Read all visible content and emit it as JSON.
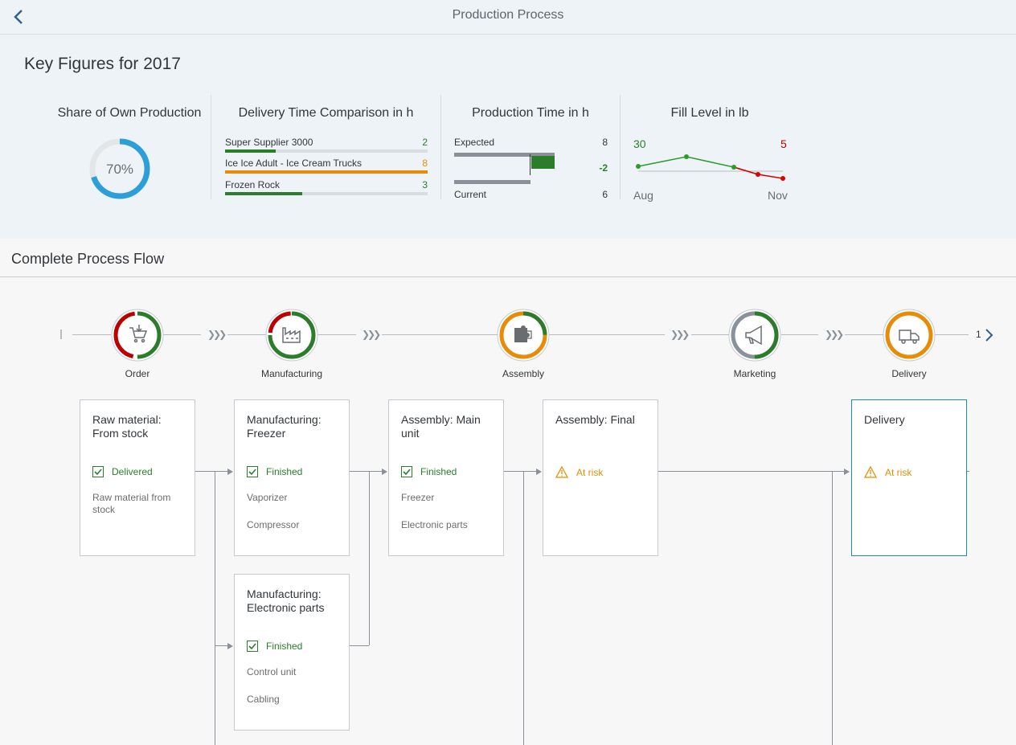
{
  "header": {
    "title": "Production Process"
  },
  "kpi": {
    "heading": "Key Figures for 2017",
    "share": {
      "title": "Share of Own Production",
      "value": "70%",
      "percent": 70
    },
    "delivery": {
      "title": "Delivery Time Comparison in h",
      "rows": [
        {
          "label": "Super Supplier 3000",
          "value": "2",
          "fraction": 0.25,
          "color": "#2b7d2b"
        },
        {
          "label": "Ice Ice Adult - Ice Cream Trucks",
          "value": "8",
          "fraction": 1.0,
          "color": "#e78c07"
        },
        {
          "label": "Frozen Rock",
          "value": "3",
          "fraction": 0.38,
          "color": "#2b7d2b"
        }
      ]
    },
    "production": {
      "title": "Production Time in h",
      "expected_label": "Expected",
      "expected_value": "8",
      "delta_value": "-2",
      "current_label": "Current",
      "current_value": "6"
    },
    "fill": {
      "title": "Fill Level in lb",
      "left_value": "30",
      "right_value": "5",
      "left_label": "Aug",
      "right_label": "Nov"
    }
  },
  "flow": {
    "title": "Complete Process Flow",
    "pager": "1",
    "lanes": [
      {
        "label": "Order",
        "icon": "cart-icon"
      },
      {
        "label": "Manufacturing",
        "icon": "factory-icon"
      },
      {
        "label": "Assembly",
        "icon": "puzzle-icon"
      },
      {
        "label": "Marketing",
        "icon": "megaphone-icon"
      },
      {
        "label": "Delivery",
        "icon": "truck-icon"
      }
    ],
    "cards": [
      {
        "title": "Raw material: From stock",
        "status": "Delivered",
        "texts": [
          "Raw material from stock"
        ]
      },
      {
        "title": "Manufacturing: Freezer",
        "status": "Finished",
        "texts": [
          "Vaporizer",
          "Compressor"
        ]
      },
      {
        "title": "Manufacturing: Electronic parts",
        "status": "Finished",
        "texts": [
          "Control unit",
          "Cabling"
        ]
      },
      {
        "title": "Assembly: Main unit",
        "status": "Finished",
        "texts": [
          "Freezer",
          "Electronic parts"
        ]
      },
      {
        "title": "Assembly: Final",
        "status": "At risk",
        "texts": []
      },
      {
        "title": "Delivery",
        "status": "At risk",
        "texts": []
      }
    ]
  },
  "colors": {
    "positive": "#2b7d2b",
    "critical": "#e78c07",
    "negative": "#bb0000",
    "accent": "#1e8aaf",
    "neutral": "#89919a"
  }
}
